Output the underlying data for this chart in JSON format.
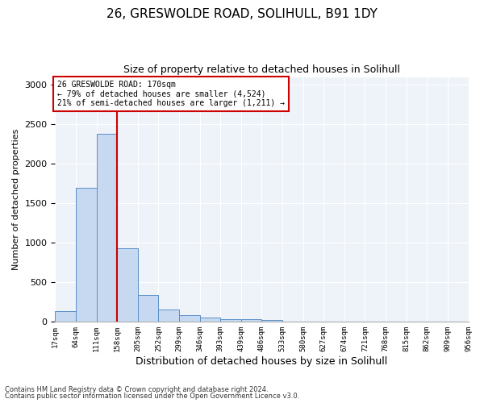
{
  "title1": "26, GRESWOLDE ROAD, SOLIHULL, B91 1DY",
  "title2": "Size of property relative to detached houses in Solihull",
  "xlabel": "Distribution of detached houses by size in Solihull",
  "ylabel": "Number of detached properties",
  "bar_values": [
    140,
    1700,
    2380,
    930,
    340,
    160,
    90,
    50,
    35,
    30,
    25,
    0,
    0,
    0,
    0,
    0,
    0,
    0,
    0,
    0
  ],
  "categories": [
    "17sqm",
    "64sqm",
    "111sqm",
    "158sqm",
    "205sqm",
    "252sqm",
    "299sqm",
    "346sqm",
    "393sqm",
    "439sqm",
    "486sqm",
    "533sqm",
    "580sqm",
    "627sqm",
    "674sqm",
    "721sqm",
    "768sqm",
    "815sqm",
    "862sqm",
    "909sqm",
    "956sqm"
  ],
  "bar_color": "#c6d9f0",
  "bar_edge_color": "#5b8fc9",
  "vline_color": "#cc0000",
  "annotation_title": "26 GRESWOLDE ROAD: 170sqm",
  "annotation_line1": "← 79% of detached houses are smaller (4,524)",
  "annotation_line2": "21% of semi-detached houses are larger (1,211) →",
  "annotation_box_color": "#ffffff",
  "annotation_box_edge": "#cc0000",
  "ylim": [
    0,
    3100
  ],
  "yticks": [
    0,
    500,
    1000,
    1500,
    2000,
    2500,
    3000
  ],
  "footer1": "Contains HM Land Registry data © Crown copyright and database right 2024.",
  "footer2": "Contains public sector information licensed under the Open Government Licence v3.0.",
  "bg_color": "#eef2f9",
  "title1_fontsize": 11,
  "title2_fontsize": 9,
  "ylabel_fontsize": 8,
  "xlabel_fontsize": 9
}
